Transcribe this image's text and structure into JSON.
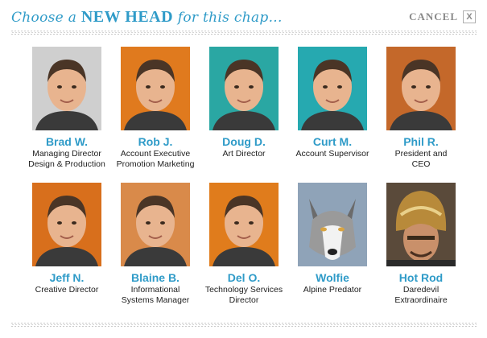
{
  "header": {
    "title_pre": "Choose a ",
    "title_big": "NEW HEAD",
    "title_post": " for this chap...",
    "cancel_label": "CANCEL",
    "close_glyph": "X"
  },
  "people": [
    {
      "name": "Brad W.",
      "role": [
        "Managing Director",
        "Design & Production"
      ],
      "bg": "#cfcfcf",
      "icon": "person-photo"
    },
    {
      "name": "Rob J.",
      "role": [
        "Account Executive",
        "Promotion Marketing"
      ],
      "bg": "#e07a1e",
      "icon": "person-photo"
    },
    {
      "name": "Doug D.",
      "role": [
        "Art Director"
      ],
      "bg": "#2aa7a3",
      "icon": "person-photo"
    },
    {
      "name": "Curt M.",
      "role": [
        "Account Supervisor"
      ],
      "bg": "#26a9b0",
      "icon": "person-photo"
    },
    {
      "name": "Phil R.",
      "role": [
        "President and",
        "CEO"
      ],
      "bg": "#c4682a",
      "icon": "person-photo"
    },
    {
      "name": "Jeff N.",
      "role": [
        "Creative Director"
      ],
      "bg": "#d86f1c",
      "icon": "person-photo"
    },
    {
      "name": "Blaine B.",
      "role": [
        "Informational",
        "Systems Manager"
      ],
      "bg": "#d98a4a",
      "icon": "person-photo"
    },
    {
      "name": "Del O.",
      "role": [
        "Technology Services",
        "Director"
      ],
      "bg": "#e07c1c",
      "icon": "person-photo"
    },
    {
      "name": "Wolfie",
      "role": [
        "Alpine Predator"
      ],
      "bg": "#8fa3b8",
      "icon": "wolf-photo"
    },
    {
      "name": "Hot Rod",
      "role": [
        "Daredevil",
        "Extraordinaire"
      ],
      "bg": "#5a4a3a",
      "icon": "helmet-photo"
    }
  ],
  "colors": {
    "accent": "#2f9bc8",
    "muted": "#8a8a8a"
  }
}
